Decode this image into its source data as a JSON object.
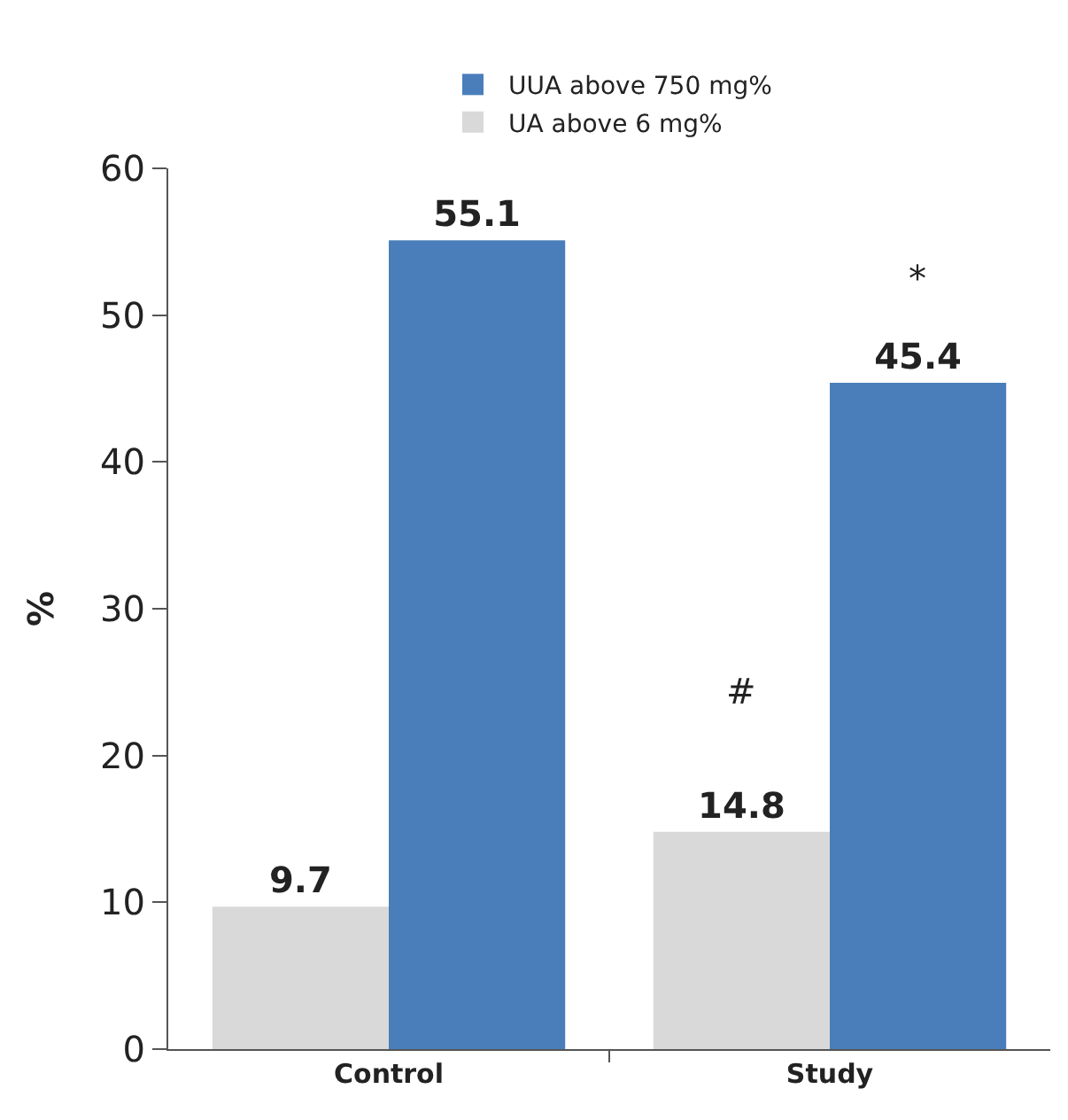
{
  "chart_data": {
    "type": "bar",
    "categories": [
      "Control",
      "Study"
    ],
    "ylabel": "%",
    "series": [
      {
        "name": "UA above 6 mg%",
        "color": "#d9d9d9",
        "values": [
          9.7,
          14.8
        ]
      },
      {
        "name": "UUA above 750 mg%",
        "color": "#4a7ebb",
        "values": [
          55.1,
          45.4
        ]
      }
    ],
    "ylim": [
      0,
      60
    ],
    "yticks": [
      0,
      10,
      20,
      30,
      40,
      50,
      60
    ],
    "grid": false,
    "legend": "top",
    "data_labels": true,
    "annotations": [
      "*",
      "#"
    ]
  }
}
